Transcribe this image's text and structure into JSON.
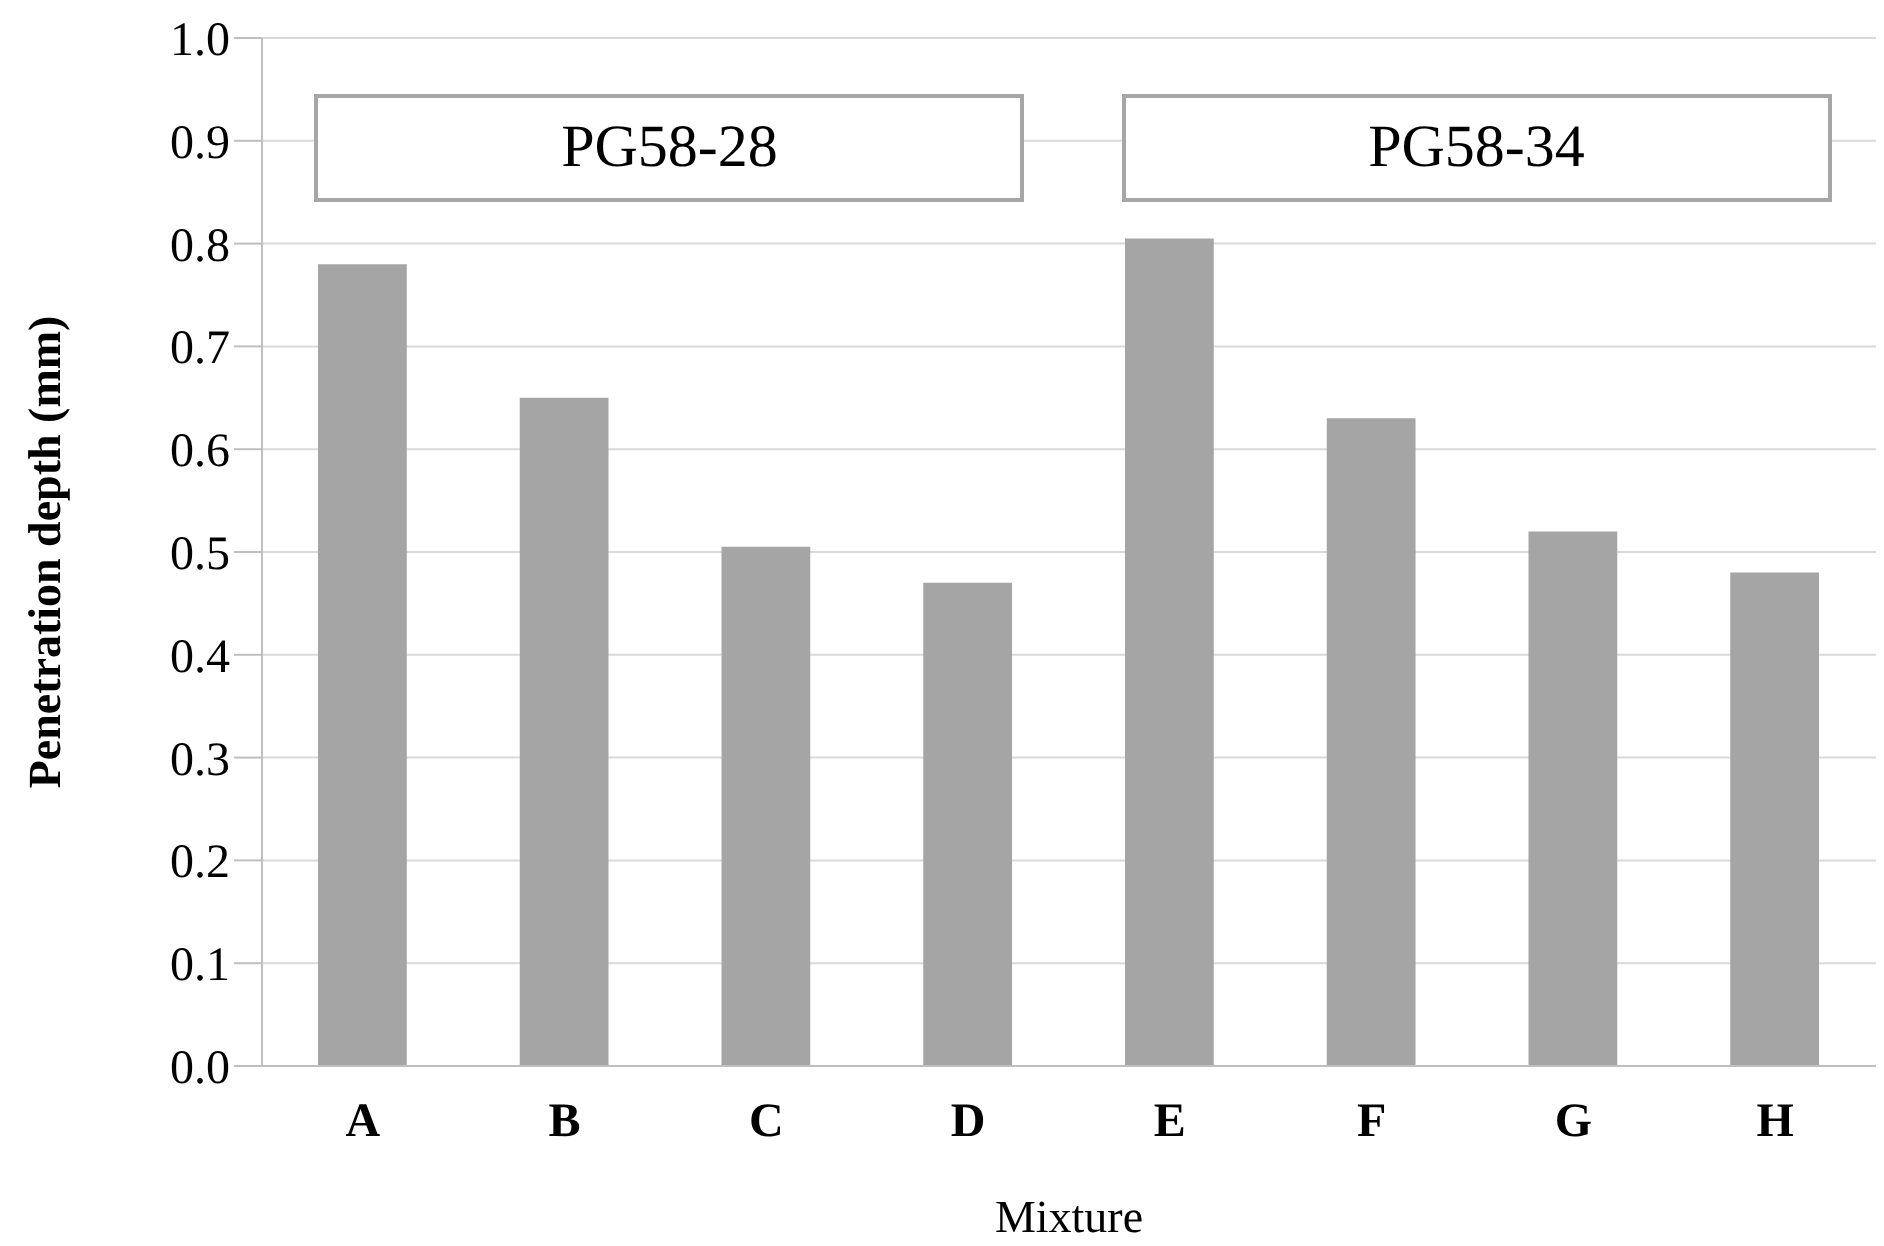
{
  "chart_data": {
    "type": "bar",
    "xlabel": "Mixture",
    "ylabel": "Penetration depth (mm)",
    "categories": [
      "A",
      "B",
      "C",
      "D",
      "E",
      "F",
      "G",
      "H"
    ],
    "values": [
      0.78,
      0.65,
      0.505,
      0.47,
      0.805,
      0.63,
      0.52,
      0.48
    ],
    "color": "#a5a5a5",
    "ylim": [
      0,
      1
    ],
    "yticks": [
      {
        "value": 0,
        "label": "0.0"
      },
      {
        "value": 0.1,
        "label": "0.1"
      },
      {
        "value": 0.2,
        "label": "0.2"
      },
      {
        "value": 0.3,
        "label": "0.3"
      },
      {
        "value": 0.4,
        "label": "0.4"
      },
      {
        "value": 0.5,
        "label": "0.5"
      },
      {
        "value": 0.6,
        "label": "0.6"
      },
      {
        "value": 0.7,
        "label": "0.7"
      },
      {
        "value": 0.8,
        "label": "0.8"
      },
      {
        "value": 0.9,
        "label": "0.9"
      },
      {
        "value": 1,
        "label": "1.0"
      }
    ],
    "grid": "y",
    "annotations": [
      "PG58-28",
      "PG58-34"
    ]
  }
}
